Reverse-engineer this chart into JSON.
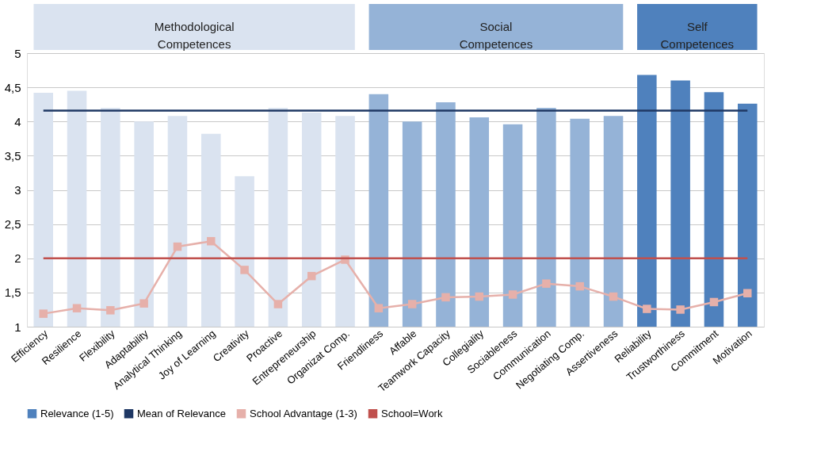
{
  "chart_data": {
    "type": "bar",
    "categories": [
      "Efficiency",
      "Resilience",
      "Flexibility",
      "Adaptability",
      "Analytical Thinking",
      "Joy of Learning",
      "Creativity",
      "Proactive",
      "Entrepreneurship",
      "Organizat Comp.",
      "Friendliness",
      "Affable",
      "Teamwork Capacity",
      "Collegiality",
      "Sociableness",
      "Communication",
      "Negotiating Comp.",
      "Assertiveness",
      "Reliability",
      "Trustworthiness",
      "Commitment",
      "Motivation"
    ],
    "series": [
      {
        "name": "Relevance (1-5)",
        "color": "#4f81bd",
        "colors": [
          "#dae3f0",
          "#dae3f0",
          "#dae3f0",
          "#dae3f0",
          "#dae3f0",
          "#dae3f0",
          "#dae3f0",
          "#dae3f0",
          "#dae3f0",
          "#dae3f0",
          "#95b3d7",
          "#95b3d7",
          "#95b3d7",
          "#95b3d7",
          "#95b3d7",
          "#95b3d7",
          "#95b3d7",
          "#95b3d7",
          "#4f81bd",
          "#4f81bd",
          "#4f81bd",
          "#4f81bd"
        ],
        "values": [
          4.42,
          4.45,
          4.2,
          4.0,
          4.08,
          3.82,
          3.2,
          4.2,
          4.13,
          4.08,
          4.4,
          4.0,
          4.28,
          4.06,
          3.96,
          4.2,
          4.04,
          4.08,
          4.68,
          4.6,
          4.43,
          4.26
        ]
      },
      {
        "name": "Mean of Relevance",
        "type": "line",
        "marker": "none",
        "color": "#1f3864",
        "values": [
          4.16,
          4.16,
          4.16,
          4.16,
          4.16,
          4.16,
          4.16,
          4.16,
          4.16,
          4.16,
          4.16,
          4.16,
          4.16,
          4.16,
          4.16,
          4.16,
          4.16,
          4.16,
          4.16,
          4.16,
          4.16,
          4.16
        ]
      },
      {
        "name": "School Advantage (1-3)",
        "type": "line",
        "marker": "square",
        "color": "#e6b0aa",
        "values": [
          1.19,
          1.27,
          1.24,
          1.34,
          2.17,
          2.25,
          1.83,
          1.33,
          1.74,
          1.98,
          1.27,
          1.33,
          1.43,
          1.44,
          1.47,
          1.63,
          1.59,
          1.44,
          1.26,
          1.25,
          1.36,
          1.49
        ]
      },
      {
        "name": "School=Work",
        "type": "line",
        "marker": "none",
        "color": "#c0504d",
        "values": [
          2,
          2,
          2,
          2,
          2,
          2,
          2,
          2,
          2,
          2,
          2,
          2,
          2,
          2,
          2,
          2,
          2,
          2,
          2,
          2,
          2,
          2
        ]
      }
    ],
    "annotations": [
      "Methodological Competences",
      "Social Competences",
      "Self Competences"
    ],
    "ylim": [
      1,
      5
    ],
    "yticks": [
      1,
      {
        "value": 1.5,
        "label": "1,5"
      },
      2,
      {
        "value": 2.5,
        "label": "2,5"
      },
      3,
      {
        "value": 3.5,
        "label": "3,5"
      },
      4,
      {
        "value": 4.5,
        "label": "4,5"
      },
      5
    ],
    "grid": "y",
    "legend": "bottom"
  }
}
